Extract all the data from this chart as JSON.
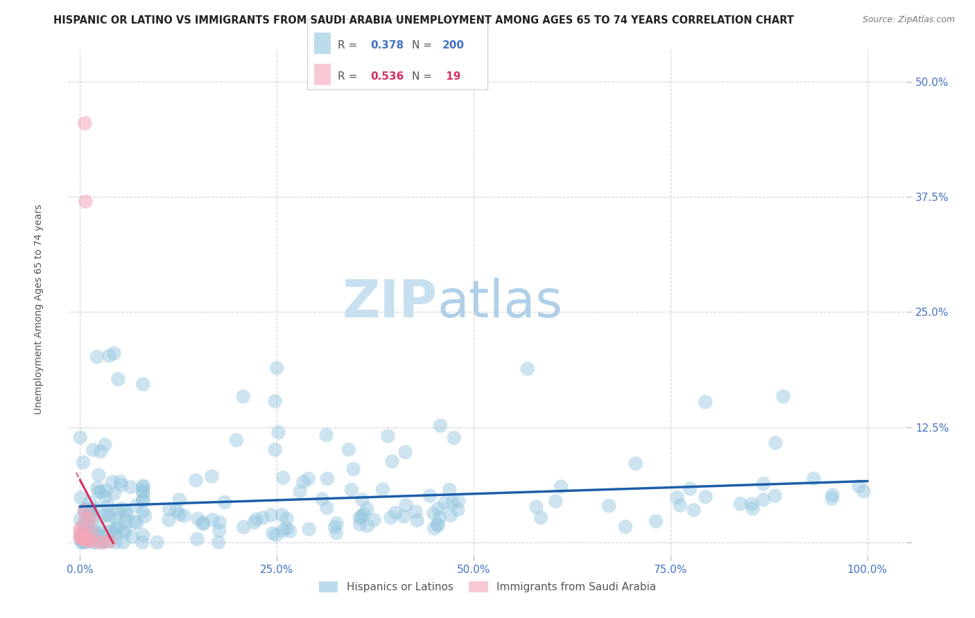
{
  "title": "HISPANIC OR LATINO VS IMMIGRANTS FROM SAUDI ARABIA UNEMPLOYMENT AMONG AGES 65 TO 74 YEARS CORRELATION CHART",
  "source": "Source: ZipAtlas.com",
  "ylabel": "Unemployment Among Ages 65 to 74 years",
  "watermark_zip": "ZIP",
  "watermark_atlas": "atlas",
  "blue_R": 0.378,
  "blue_N": 200,
  "pink_R": 0.536,
  "pink_N": 19,
  "blue_color": "#92c5de",
  "pink_color": "#f4a6b8",
  "blue_line_color": "#1a5ea8",
  "pink_line_color": "#d63060",
  "yticks": [
    0.0,
    0.125,
    0.25,
    0.375,
    0.5
  ],
  "ytick_labels": [
    "",
    "12.5%",
    "25.0%",
    "37.5%",
    "50.0%"
  ],
  "xticks": [
    0.0,
    0.25,
    0.5,
    0.75,
    1.0
  ],
  "xtick_labels": [
    "0.0%",
    "25.0%",
    "50.0%",
    "75.0%",
    "100.0%"
  ],
  "xlim": [
    -0.015,
    1.05
  ],
  "ylim": [
    -0.015,
    0.535
  ],
  "legend_label_blue": "Hispanics or Latinos",
  "legend_label_pink": "Immigrants from Saudi Arabia",
  "title_fontsize": 10.5,
  "source_fontsize": 9,
  "axis_label_fontsize": 10,
  "tick_fontsize": 11,
  "watermark_fontsize_zip": 54,
  "watermark_fontsize_atlas": 54,
  "watermark_color_zip": "#c8dff0",
  "watermark_color_atlas": "#b0cfe8",
  "grid_color": "#cccccc",
  "background_color": "#ffffff",
  "tick_color": "#4472c4",
  "legend_text_color": "#555555",
  "blue_val_color": "#4472c4",
  "pink_val_color": "#d63060"
}
